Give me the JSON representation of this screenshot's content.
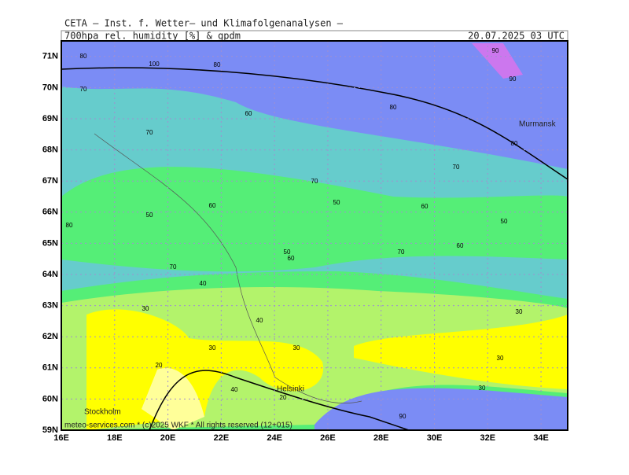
{
  "header": {
    "title": "CETA — Inst. f. Wetter— und Klimafolgenanalysen —",
    "field": "700hpa_rel._humidity_[%]_&_gpdm",
    "date": "20.07.2025 03 UTC"
  },
  "map": {
    "xlim": [
      16,
      35
    ],
    "ylim": [
      59,
      71.5
    ],
    "xticks": [
      {
        "value": 16,
        "label": "16E"
      },
      {
        "value": 18,
        "label": "18E"
      },
      {
        "value": 20,
        "label": "20E"
      },
      {
        "value": 22,
        "label": "22E"
      },
      {
        "value": 24,
        "label": "24E"
      },
      {
        "value": 26,
        "label": "26E"
      },
      {
        "value": 28,
        "label": "28E"
      },
      {
        "value": 30,
        "label": "30E"
      },
      {
        "value": 32,
        "label": "32E"
      },
      {
        "value": 34,
        "label": "34E"
      }
    ],
    "yticks": [
      {
        "value": 59,
        "label": "59N"
      },
      {
        "value": 60,
        "label": "60N"
      },
      {
        "value": 61,
        "label": "61N"
      },
      {
        "value": 62,
        "label": "62N"
      },
      {
        "value": 63,
        "label": "63N"
      },
      {
        "value": 64,
        "label": "64N"
      },
      {
        "value": 65,
        "label": "65N"
      },
      {
        "value": 66,
        "label": "66N"
      },
      {
        "value": 67,
        "label": "67N"
      },
      {
        "value": 68,
        "label": "68N"
      },
      {
        "value": 69,
        "label": "69N"
      },
      {
        "value": 70,
        "label": "70N"
      },
      {
        "value": 71,
        "label": "71N"
      }
    ],
    "places": [
      "Murmansk",
      "Helsinki",
      "Stockholm"
    ],
    "contour_labels": [
      80,
      100,
      80,
      70,
      60,
      70,
      80,
      90,
      90,
      80,
      70,
      70,
      60,
      50,
      60,
      50,
      60,
      50,
      50,
      70,
      60,
      70,
      40,
      40,
      30,
      30,
      30,
      20,
      30,
      20,
      40,
      30,
      30,
      90,
      80
    ],
    "footer": "meteo-services.com * (c)2025 WKF * All rights reserved (12+015)"
  }
}
